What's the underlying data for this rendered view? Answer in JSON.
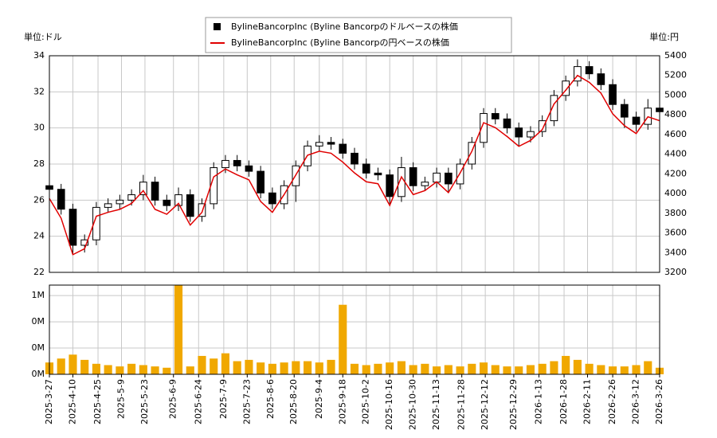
{
  "chart_data": [
    {
      "type": "candlestick",
      "y_label": "単位:ドル",
      "y2_label": "単位:円",
      "x": [
        "2025-3-27",
        "2025-4-3",
        "2025-4-10",
        "2025-4-17",
        "2025-4-24",
        "2025-5-1",
        "2025-5-8",
        "2025-5-15",
        "2025-5-22",
        "2025-5-29",
        "2025-6-5",
        "2025-6-12",
        "2025-6-19",
        "2025-6-26",
        "2025-7-3",
        "2025-7-10",
        "2025-7-17",
        "2025-7-24",
        "2025-7-31",
        "2025-8-7",
        "2025-8-14",
        "2025-8-21",
        "2025-8-28",
        "2025-9-4",
        "2025-9-11",
        "2025-9-18",
        "2025-9-25",
        "2025-10-2",
        "2025-10-9",
        "2025-10-16",
        "2025-10-23",
        "2025-10-30",
        "2025-11-6",
        "2025-11-13",
        "2025-11-20",
        "2025-11-27",
        "2025-12-4",
        "2025-12-11",
        "2025-12-18",
        "2025-12-25",
        "2026-1-1",
        "2026-1-8",
        "2026-1-15",
        "2026-1-22",
        "2026-1-29",
        "2026-2-5",
        "2026-2-12",
        "2026-2-19",
        "2026-2-26",
        "2026-3-5",
        "2026-3-12",
        "2026-3-19",
        "2026-3-26"
      ],
      "xlim": [
        "2025-3-27",
        "2026-3-26"
      ],
      "ylim": [
        22,
        34
      ],
      "yticks": [
        22,
        24,
        26,
        28,
        30,
        32,
        34
      ],
      "y2lim": [
        3200,
        5400
      ],
      "y2ticks": [
        3200,
        3400,
        3600,
        3800,
        4000,
        4200,
        4400,
        4600,
        4800,
        5000,
        5200,
        5400
      ],
      "grid": true,
      "series": [
        {
          "name": "BylineBancorpInc (Byline Bancorpのドルベースの株価",
          "color": "#000000",
          "open": [
            26.8,
            26.6,
            25.5,
            23.5,
            23.8,
            25.6,
            25.8,
            26.0,
            26.3,
            27.0,
            26.0,
            25.7,
            26.3,
            25.1,
            25.8,
            27.8,
            28.2,
            27.9,
            27.6,
            26.4,
            25.8,
            26.8,
            27.9,
            29.0,
            29.2,
            29.1,
            28.6,
            28.0,
            27.5,
            27.4,
            26.2,
            27.8,
            26.8,
            27.0,
            27.5,
            26.9,
            28.0,
            29.2,
            30.8,
            30.5,
            30.0,
            29.5,
            29.8,
            30.4,
            31.8,
            32.6,
            33.4,
            33.0,
            32.4,
            31.3,
            30.6,
            30.2,
            31.1
          ],
          "high": [
            27.1,
            26.9,
            25.8,
            24.1,
            25.9,
            26.1,
            26.3,
            26.6,
            27.4,
            27.3,
            26.3,
            26.7,
            26.6,
            26.1,
            28.1,
            28.5,
            28.5,
            28.2,
            27.9,
            26.7,
            27.1,
            28.2,
            29.3,
            29.6,
            29.5,
            29.4,
            28.9,
            28.3,
            27.8,
            27.7,
            28.4,
            28.1,
            27.3,
            27.8,
            27.8,
            28.3,
            29.5,
            31.1,
            31.1,
            30.8,
            30.3,
            30.1,
            30.7,
            32.1,
            32.9,
            33.8,
            33.7,
            33.3,
            32.7,
            31.6,
            30.9,
            31.6,
            31.4
          ],
          "low": [
            26.3,
            25.2,
            23.0,
            23.1,
            23.5,
            25.3,
            25.5,
            25.7,
            26.0,
            25.7,
            25.4,
            25.4,
            24.8,
            24.8,
            25.5,
            27.5,
            27.6,
            27.3,
            26.1,
            25.5,
            25.5,
            25.9,
            27.6,
            28.7,
            28.8,
            28.3,
            27.7,
            27.2,
            27.1,
            25.8,
            25.9,
            26.5,
            26.5,
            26.7,
            26.4,
            26.6,
            27.7,
            28.9,
            30.2,
            29.7,
            29.0,
            29.2,
            29.5,
            30.1,
            31.5,
            32.3,
            32.7,
            32.1,
            31.0,
            30.0,
            29.8,
            29.9,
            30.6
          ],
          "close": [
            26.6,
            25.5,
            23.5,
            23.8,
            25.6,
            25.8,
            26.0,
            26.3,
            27.0,
            26.0,
            25.7,
            26.3,
            25.1,
            25.8,
            27.8,
            28.2,
            27.9,
            27.6,
            26.4,
            25.8,
            26.8,
            27.9,
            29.0,
            29.2,
            29.1,
            28.6,
            28.0,
            27.5,
            27.4,
            26.2,
            27.8,
            26.8,
            27.0,
            27.5,
            26.9,
            28.0,
            29.2,
            30.8,
            30.5,
            30.0,
            29.5,
            29.8,
            30.4,
            31.8,
            32.6,
            33.4,
            33.0,
            32.4,
            31.3,
            30.6,
            30.2,
            31.1,
            30.9
          ]
        },
        {
          "name": "BylineBancorpInc (Byline Bancorpの円ベースの株価",
          "color": "#e00000",
          "axis": "y2",
          "values": [
            3950,
            3750,
            3380,
            3440,
            3770,
            3810,
            3840,
            3900,
            4030,
            3840,
            3790,
            3900,
            3680,
            3810,
            4170,
            4250,
            4190,
            4140,
            3920,
            3810,
            3990,
            4190,
            4390,
            4430,
            4410,
            4320,
            4210,
            4120,
            4100,
            3880,
            4170,
            3990,
            4030,
            4120,
            4010,
            4210,
            4430,
            4720,
            4670,
            4580,
            4480,
            4540,
            4650,
            4910,
            5050,
            5200,
            5130,
            5020,
            4810,
            4690,
            4610,
            4780,
            4740
          ]
        }
      ]
    },
    {
      "type": "bar",
      "color": "#f0a800",
      "x": [
        "2025-3-27",
        "2025-4-3",
        "2025-4-10",
        "2025-4-17",
        "2025-4-24",
        "2025-5-1",
        "2025-5-8",
        "2025-5-15",
        "2025-5-22",
        "2025-5-29",
        "2025-6-5",
        "2025-6-12",
        "2025-6-19",
        "2025-6-26",
        "2025-7-3",
        "2025-7-10",
        "2025-7-17",
        "2025-7-24",
        "2025-7-31",
        "2025-8-7",
        "2025-8-14",
        "2025-8-21",
        "2025-8-28",
        "2025-9-4",
        "2025-9-11",
        "2025-9-18",
        "2025-9-25",
        "2025-10-2",
        "2025-10-9",
        "2025-10-16",
        "2025-10-23",
        "2025-10-30",
        "2025-11-6",
        "2025-11-13",
        "2025-11-20",
        "2025-11-27",
        "2025-12-4",
        "2025-12-11",
        "2025-12-18",
        "2025-12-25",
        "2026-1-1",
        "2026-1-8",
        "2026-1-15",
        "2026-1-22",
        "2026-1-29",
        "2026-2-5",
        "2026-2-12",
        "2026-2-19",
        "2026-2-26",
        "2026-3-5",
        "2026-3-12",
        "2026-3-19",
        "2026-3-26"
      ],
      "values": [
        90000,
        120000,
        150000,
        110000,
        80000,
        70000,
        60000,
        80000,
        70000,
        60000,
        50000,
        680000,
        60000,
        140000,
        120000,
        160000,
        100000,
        110000,
        90000,
        80000,
        90000,
        100000,
        100000,
        90000,
        110000,
        530000,
        80000,
        70000,
        80000,
        90000,
        100000,
        70000,
        80000,
        60000,
        70000,
        60000,
        80000,
        90000,
        70000,
        60000,
        60000,
        70000,
        80000,
        100000,
        140000,
        110000,
        80000,
        70000,
        60000,
        60000,
        70000,
        100000,
        50000
      ],
      "xlim": [
        "2025-3-27",
        "2026-3-26"
      ],
      "xticks": [
        "2025-3-27",
        "2025-4-10",
        "2025-4-25",
        "2025-5-9",
        "2025-5-23",
        "2025-6-9",
        "2025-6-24",
        "2025-7-9",
        "2025-7-23",
        "2025-8-6",
        "2025-8-20",
        "2025-9-4",
        "2025-9-18",
        "2025-10-2",
        "2025-10-16",
        "2025-10-30",
        "2025-11-13",
        "2025-11-28",
        "2025-12-12",
        "2025-12-29",
        "2026-1-13",
        "2026-1-28",
        "2026-2-11",
        "2026-2-26",
        "2026-3-12",
        "2026-3-26"
      ],
      "ylim": [
        0,
        680000
      ],
      "yticks": [
        {
          "value": 0,
          "label": "0M"
        },
        {
          "value": 200000,
          "label": "0M"
        },
        {
          "value": 400000,
          "label": "0M"
        },
        {
          "value": 600000,
          "label": "1M"
        }
      ],
      "grid": true
    }
  ]
}
